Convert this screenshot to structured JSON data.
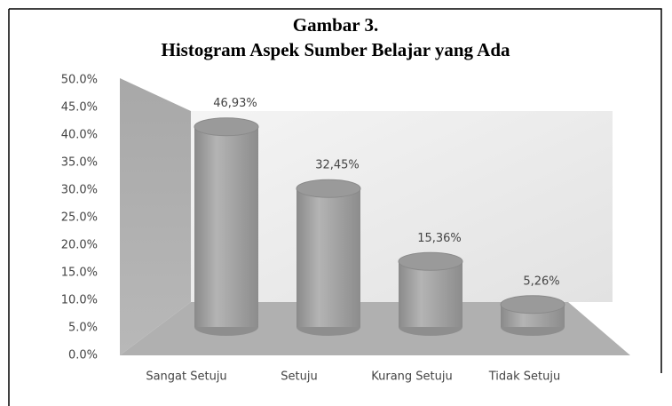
{
  "chart_data": {
    "type": "bar3d",
    "title": [
      "Gambar 3.",
      "Histogram Aspek Sumber Belajar yang Ada"
    ],
    "categories": [
      "Sangat Setuju",
      "Setuju",
      "Kurang Setuju",
      "Tidak Setuju"
    ],
    "values": [
      46.93,
      32.45,
      15.36,
      5.26
    ],
    "value_labels": [
      "46,93%",
      "32,45%",
      "15,36%",
      "5,26%"
    ],
    "color": "#9a9a9a",
    "ylim": [
      0,
      50
    ],
    "yticks": [
      {
        "value": 0,
        "label": "0.0%"
      },
      {
        "value": 5,
        "label": "5.0%"
      },
      {
        "value": 10,
        "label": "10.0%"
      },
      {
        "value": 15,
        "label": "15.0%"
      },
      {
        "value": 20,
        "label": "20.0%"
      },
      {
        "value": 25,
        "label": "25.0%"
      },
      {
        "value": 30,
        "label": "30.0%"
      },
      {
        "value": 35,
        "label": "35.0%"
      },
      {
        "value": 40,
        "label": "40.0%"
      },
      {
        "value": 45,
        "label": "45.0%"
      },
      {
        "value": 50,
        "label": "50.0%"
      }
    ],
    "grid": false
  }
}
